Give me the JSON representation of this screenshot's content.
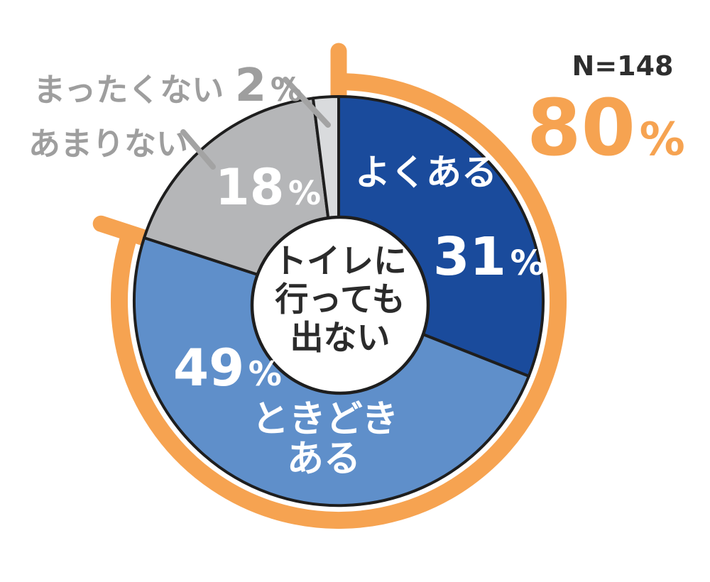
{
  "chart_data": {
    "type": "pie",
    "style": "donut-infographic",
    "title": "トイレに行っても出ない",
    "center_label": {
      "lines": [
        "トイレに",
        "行っても",
        "出ない"
      ]
    },
    "sample_size_label": "N=148",
    "percent_sign": "%",
    "start_angle_deg": 0,
    "clockwise": true,
    "legend_position": "labels-on-slices",
    "categories": [
      "よくある",
      "ときどきある",
      "あまりない",
      "まったくない"
    ],
    "values": [
      31,
      49,
      18,
      2
    ],
    "slices": [
      {
        "name": "yoku-aru",
        "label": "よくある",
        "label_lines": [
          "よくある"
        ],
        "value": 31,
        "color": "#1a4b9c",
        "label_color": "#ffffff"
      },
      {
        "name": "tokidoki-aru",
        "label": "ときどきある",
        "label_lines": [
          "ときどき",
          "ある"
        ],
        "value": 49,
        "color": "#5f8fca",
        "label_color": "#ffffff"
      },
      {
        "name": "amari-nai",
        "label": "あまりない",
        "label_lines": [
          "あまりない"
        ],
        "value": 18,
        "color": "#b5b6b8",
        "label_color": "#ffffff"
      },
      {
        "name": "mattaku-nai",
        "label": "まったくない",
        "label_lines": [
          "まったくない"
        ],
        "value": 2,
        "color": "#d9dbdd",
        "label_color": "#9e9e9e"
      }
    ],
    "highlight": {
      "value": 80,
      "display": "80",
      "covers": [
        "よくある",
        "ときどきある"
      ],
      "color": "#f6a351"
    }
  },
  "colors": {
    "orange": "#f6a351",
    "outline": "#1e1e1e",
    "gray_label": "#9e9e9e",
    "leader_line": "#a3a3a3",
    "text_dark": "#2e2e2e",
    "white": "#ffffff"
  }
}
